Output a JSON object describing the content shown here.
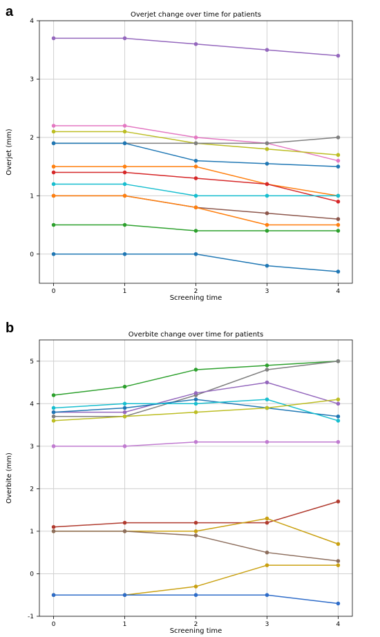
{
  "figure": {
    "panel_letters": [
      "a",
      "b"
    ]
  },
  "chart_data": [
    {
      "type": "line",
      "title": "Overjet change over time for patients",
      "xlabel": "Screening time",
      "ylabel": "Overjet (mm)",
      "x": [
        0,
        1,
        2,
        3,
        4
      ],
      "xlim": [
        -0.2,
        4.2
      ],
      "ylim": [
        -0.5,
        4.0
      ],
      "xticks": [
        0,
        1,
        2,
        3,
        4
      ],
      "yticks": [
        0,
        1,
        2,
        3,
        4
      ],
      "grid": true,
      "series": [
        {
          "color": "#9467bd",
          "values": [
            3.7,
            3.7,
            3.6,
            3.5,
            3.4
          ]
        },
        {
          "color": "#e377c2",
          "values": [
            2.2,
            2.2,
            2.0,
            1.9,
            1.6
          ]
        },
        {
          "color": "#bcbd22",
          "values": [
            2.1,
            2.1,
            1.9,
            1.8,
            1.7
          ]
        },
        {
          "color": "#7f7f7f",
          "values": [
            1.9,
            1.9,
            1.9,
            1.9,
            2.0
          ]
        },
        {
          "color": "#1f77b4",
          "values": [
            1.9,
            1.9,
            1.6,
            1.55,
            1.5
          ]
        },
        {
          "color": "#ff7f0e",
          "values": [
            1.5,
            1.5,
            1.5,
            1.2,
            1.0
          ]
        },
        {
          "color": "#d62728",
          "values": [
            1.4,
            1.4,
            1.3,
            1.2,
            0.9
          ]
        },
        {
          "color": "#17becf",
          "values": [
            1.2,
            1.2,
            1.0,
            1.0,
            1.0
          ]
        },
        {
          "color": "#8c564b",
          "values": [
            1.0,
            1.0,
            0.8,
            0.7,
            0.6
          ]
        },
        {
          "color": "#ff7f0e",
          "values": [
            1.0,
            1.0,
            0.8,
            0.5,
            0.5
          ]
        },
        {
          "color": "#2ca02c",
          "values": [
            0.5,
            0.5,
            0.4,
            0.4,
            0.4
          ]
        },
        {
          "color": "#1f77b4",
          "values": [
            0.0,
            0.0,
            0.0,
            -0.2,
            -0.3
          ]
        }
      ]
    },
    {
      "type": "line",
      "title": "Overbite change over time for patients",
      "xlabel": "Screening time",
      "ylabel": "Overbite (mm)",
      "x": [
        0,
        1,
        2,
        3,
        4
      ],
      "xlim": [
        -0.2,
        4.2
      ],
      "ylim": [
        -1.0,
        5.5
      ],
      "xticks": [
        0,
        1,
        2,
        3,
        4
      ],
      "yticks": [
        -1,
        0,
        1,
        2,
        3,
        4,
        5
      ],
      "grid": true,
      "series": [
        {
          "color": "#2ca02c",
          "values": [
            4.2,
            4.4,
            4.8,
            4.9,
            5.0
          ]
        },
        {
          "color": "#7f7f7f",
          "values": [
            3.7,
            3.7,
            4.2,
            4.8,
            5.0
          ]
        },
        {
          "color": "#9467bd",
          "values": [
            3.8,
            3.8,
            4.25,
            4.5,
            4.0
          ]
        },
        {
          "color": "#1f77b4",
          "values": [
            3.8,
            3.9,
            4.1,
            3.9,
            3.7
          ]
        },
        {
          "color": "#17becf",
          "values": [
            3.9,
            4.0,
            4.0,
            4.1,
            3.6
          ]
        },
        {
          "color": "#bcbd22",
          "values": [
            3.6,
            3.7,
            3.8,
            3.9,
            4.1
          ]
        },
        {
          "color": "#c07ad0",
          "values": [
            3.0,
            3.0,
            3.1,
            3.1,
            3.1
          ]
        },
        {
          "color": "#b03a2e",
          "values": [
            1.1,
            1.2,
            1.2,
            1.2,
            1.7
          ]
        },
        {
          "color": "#c9a010",
          "values": [
            1.0,
            1.0,
            1.0,
            1.3,
            0.7
          ]
        },
        {
          "color": "#8c6d5c",
          "values": [
            1.0,
            1.0,
            0.9,
            0.5,
            0.3
          ]
        },
        {
          "color": "#c9a010",
          "values": [
            -0.5,
            -0.5,
            -0.3,
            0.2,
            0.2
          ]
        },
        {
          "color": "#2e6cc9",
          "values": [
            -0.5,
            -0.5,
            -0.5,
            -0.5,
            -0.7
          ]
        }
      ]
    }
  ]
}
